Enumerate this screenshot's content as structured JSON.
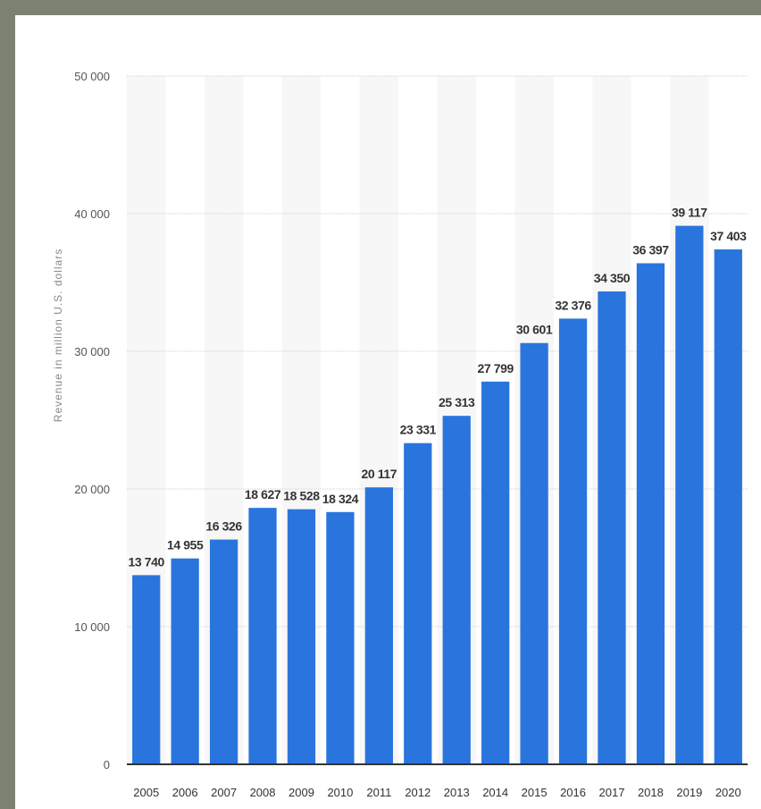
{
  "colors": {
    "bar": "#2a75dd",
    "grid": "#cfcfcf",
    "axis": "#333333",
    "band": "#f7f7f7"
  },
  "chart_data": {
    "type": "bar",
    "title": "",
    "xlabel": "",
    "ylabel": "Revenue in million U.S. dollars",
    "ylim": [
      0,
      50000
    ],
    "yticks": [
      0,
      10000,
      20000,
      30000,
      40000,
      50000
    ],
    "ytick_labels": [
      "0",
      "10 000",
      "20 000",
      "30 000",
      "40 000",
      "50 000"
    ],
    "grid": true,
    "legend": "none",
    "categories": [
      "2005",
      "2006",
      "2007",
      "2008",
      "2009",
      "2010",
      "2011",
      "2012",
      "2013",
      "2014",
      "2015",
      "2016",
      "2017",
      "2018",
      "2019",
      "2020"
    ],
    "values": [
      13740,
      14955,
      16326,
      18627,
      18528,
      18324,
      20117,
      23331,
      25313,
      27799,
      30601,
      32376,
      34350,
      36397,
      39117,
      37403
    ],
    "value_labels": [
      "13 740",
      "14 955",
      "16 326",
      "18 627",
      "18 528",
      "18 324",
      "20 117",
      "23 331",
      "25 313",
      "27 799",
      "30 601",
      "32 376",
      "34 350",
      "36 397",
      "39 117",
      "37 403"
    ]
  }
}
